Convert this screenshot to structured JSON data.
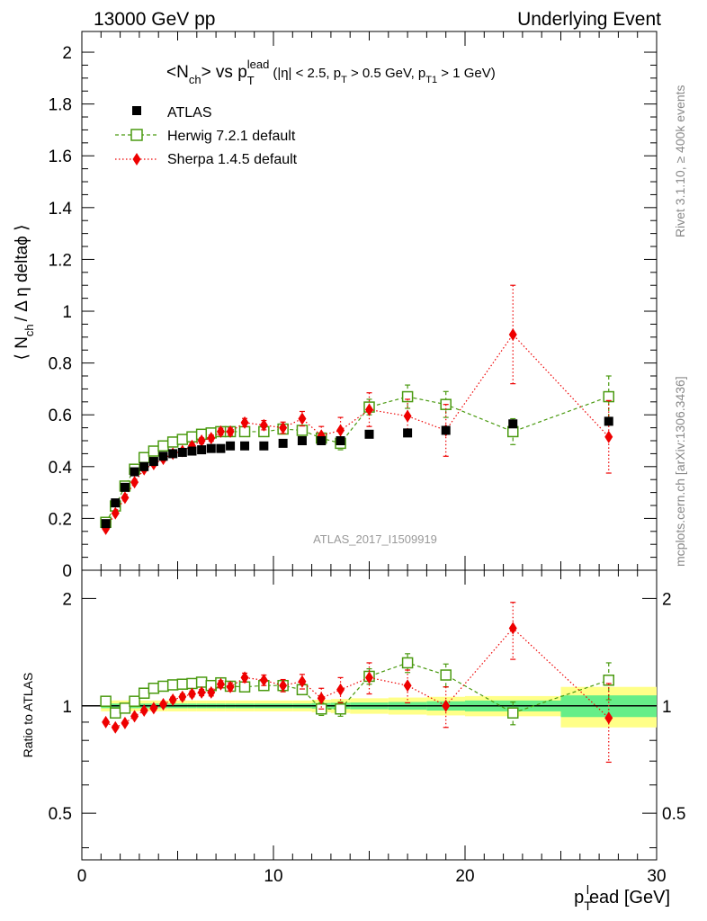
{
  "header": {
    "left": "13000 GeV pp",
    "right": "Underlying Event"
  },
  "side_labels": {
    "rivet": "Rivet 3.1.10, ≥ 400k events",
    "mcplots": "mcplots.cern.ch [arXiv:1306.3436]"
  },
  "chart_data": [
    {
      "type": "scatter",
      "panel": "main",
      "title_parts": {
        "main": "<N",
        "main_sub": "ch",
        "main_tail": "> vs p",
        "p_sub": "T",
        "p_sup": "lead",
        "cuts_1": "(|η| < 2.5, p",
        "cuts_sub1": "T",
        "cuts_2": " > 0.5 GeV, p",
        "cuts_sub2": "T1",
        "cuts_3": " > 1 GeV)"
      },
      "ylabel_parts": {
        "a": "⟨ N",
        "a_sub": "ch",
        "b": "/ Δ η deltaϕ ⟩"
      },
      "watermark": "ATLAS_2017_I1509919",
      "xlim": [
        0,
        30
      ],
      "ylim": [
        0,
        2.08
      ],
      "yticks": [
        0,
        0.2,
        0.4,
        0.6,
        0.8,
        1,
        1.2,
        1.4,
        1.6,
        1.8,
        2
      ],
      "ytick_labels": [
        "0",
        "0.2",
        "0.4",
        "0.6",
        "0.8",
        "1",
        "1.2",
        "1.4",
        "1.6",
        "1.8",
        "2"
      ],
      "legend_position": "top-left",
      "series": [
        {
          "name": "ATLAS",
          "color": "#000000",
          "marker": "filled-square",
          "x": [
            1.25,
            1.75,
            2.25,
            2.75,
            3.25,
            3.75,
            4.25,
            4.75,
            5.25,
            5.75,
            6.25,
            6.75,
            7.25,
            7.75,
            8.5,
            9.5,
            10.5,
            11.5,
            12.5,
            13.5,
            15,
            17,
            19,
            22.5,
            27.5
          ],
          "y": [
            0.18,
            0.26,
            0.32,
            0.38,
            0.4,
            0.42,
            0.44,
            0.45,
            0.455,
            0.46,
            0.465,
            0.47,
            0.47,
            0.48,
            0.48,
            0.48,
            0.49,
            0.5,
            0.5,
            0.5,
            0.525,
            0.53,
            0.54,
            0.565,
            0.575
          ]
        },
        {
          "name": "Herwig 7.2.1 default",
          "color": "#4a9a10",
          "marker": "open-square",
          "line": "dashed",
          "x": [
            1.25,
            1.75,
            2.25,
            2.75,
            3.25,
            3.75,
            4.25,
            4.75,
            5.25,
            5.75,
            6.25,
            6.75,
            7.25,
            7.75,
            8.5,
            9.5,
            10.5,
            11.5,
            12.5,
            13.5,
            15,
            17,
            19,
            22.5,
            27.5
          ],
          "y": [
            0.185,
            0.248,
            0.325,
            0.39,
            0.435,
            0.46,
            0.48,
            0.495,
            0.505,
            0.515,
            0.525,
            0.53,
            0.535,
            0.535,
            0.535,
            0.535,
            0.545,
            0.54,
            0.51,
            0.49,
            0.63,
            0.67,
            0.64,
            0.535,
            0.67
          ],
          "yerr": [
            0.008,
            0.008,
            0.008,
            0.008,
            0.008,
            0.008,
            0.008,
            0.008,
            0.008,
            0.008,
            0.008,
            0.008,
            0.008,
            0.008,
            0.01,
            0.012,
            0.015,
            0.018,
            0.02,
            0.025,
            0.03,
            0.045,
            0.05,
            0.05,
            0.08
          ]
        },
        {
          "name": "Sherpa 1.4.5 default",
          "color": "#ee0000",
          "marker": "filled-diamond",
          "line": "dotted",
          "x": [
            1.25,
            1.75,
            2.25,
            2.75,
            3.25,
            3.75,
            4.25,
            4.75,
            5.25,
            5.75,
            6.25,
            6.75,
            7.25,
            7.75,
            8.5,
            9.5,
            10.5,
            11.5,
            12.5,
            13.5,
            15,
            17,
            19,
            22.5,
            27.5
          ],
          "y": [
            0.16,
            0.22,
            0.28,
            0.34,
            0.39,
            0.41,
            0.43,
            0.45,
            0.46,
            0.48,
            0.5,
            0.51,
            0.535,
            0.535,
            0.57,
            0.56,
            0.55,
            0.585,
            0.52,
            0.54,
            0.62,
            0.595,
            0.54,
            0.91,
            0.515
          ],
          "yerr": [
            0.005,
            0.005,
            0.006,
            0.006,
            0.007,
            0.007,
            0.008,
            0.009,
            0.01,
            0.01,
            0.011,
            0.012,
            0.013,
            0.014,
            0.016,
            0.018,
            0.022,
            0.028,
            0.035,
            0.05,
            0.065,
            0.065,
            0.1,
            0.19,
            0.14
          ]
        }
      ]
    },
    {
      "type": "scatter",
      "panel": "ratio",
      "ylabel": "Ratio to ATLAS",
      "xlabel_parts": {
        "p": "p",
        "p_sub": "T",
        "p_sup": "l",
        "tail": "ead [GeV]"
      },
      "xlim": [
        0,
        30
      ],
      "ylim": [
        0.37,
        2.4
      ],
      "log_y": true,
      "xticks": [
        0,
        10,
        20,
        30
      ],
      "xtick_labels": [
        "0",
        "10",
        "20",
        "30"
      ],
      "yticks": [
        0.5,
        1,
        2
      ],
      "ytick_labels": [
        "0.5",
        "1",
        "2"
      ],
      "band_edges": [
        1,
        1.5,
        2,
        2.5,
        3,
        3.5,
        4,
        4.5,
        5,
        5.5,
        6,
        6.5,
        7,
        7.5,
        8,
        9,
        10,
        11,
        12,
        13,
        14,
        16,
        18,
        20,
        25,
        30
      ],
      "band_inner": [
        0.015,
        0.015,
        0.015,
        0.015,
        0.015,
        0.015,
        0.015,
        0.015,
        0.015,
        0.015,
        0.015,
        0.015,
        0.015,
        0.015,
        0.015,
        0.015,
        0.015,
        0.015,
        0.018,
        0.02,
        0.022,
        0.025,
        0.03,
        0.035,
        0.07
      ],
      "band_outer": [
        0.035,
        0.035,
        0.035,
        0.035,
        0.035,
        0.035,
        0.035,
        0.035,
        0.035,
        0.035,
        0.035,
        0.035,
        0.035,
        0.035,
        0.035,
        0.035,
        0.035,
        0.035,
        0.04,
        0.045,
        0.05,
        0.055,
        0.06,
        0.065,
        0.13
      ],
      "band_colors": {
        "inner": "#66ee88",
        "outer": "#ffff88"
      },
      "series": [
        {
          "name": "Herwig 7.2.1 default",
          "color": "#4a9a10",
          "marker": "open-square",
          "line": "dashed",
          "x": [
            1.25,
            1.75,
            2.25,
            2.75,
            3.25,
            3.75,
            4.25,
            4.75,
            5.25,
            5.75,
            6.25,
            6.75,
            7.25,
            7.75,
            8.5,
            9.5,
            10.5,
            11.5,
            12.5,
            13.5,
            15,
            17,
            19,
            22.5,
            27.5
          ],
          "y": [
            1.03,
            0.955,
            0.985,
            1.03,
            1.085,
            1.12,
            1.135,
            1.145,
            1.15,
            1.155,
            1.165,
            1.14,
            1.16,
            1.135,
            1.13,
            1.14,
            1.14,
            1.11,
            0.98,
            0.98,
            1.21,
            1.32,
            1.22,
            0.955,
            1.18
          ],
          "yerr": [
            0.01,
            0.01,
            0.01,
            0.01,
            0.01,
            0.01,
            0.01,
            0.01,
            0.01,
            0.01,
            0.01,
            0.01,
            0.01,
            0.01,
            0.02,
            0.025,
            0.03,
            0.035,
            0.04,
            0.045,
            0.06,
            0.08,
            0.09,
            0.07,
            0.14
          ]
        },
        {
          "name": "Sherpa 1.4.5 default",
          "color": "#ee0000",
          "marker": "filled-diamond",
          "line": "dotted",
          "x": [
            1.25,
            1.75,
            2.25,
            2.75,
            3.25,
            3.75,
            4.25,
            4.75,
            5.25,
            5.75,
            6.25,
            6.75,
            7.25,
            7.75,
            8.5,
            9.5,
            10.5,
            11.5,
            12.5,
            13.5,
            15,
            17,
            19,
            22.5,
            27.5
          ],
          "y": [
            0.9,
            0.87,
            0.895,
            0.935,
            0.97,
            0.985,
            1.01,
            1.04,
            1.06,
            1.08,
            1.09,
            1.09,
            1.15,
            1.13,
            1.2,
            1.18,
            1.14,
            1.17,
            1.05,
            1.11,
            1.2,
            1.14,
            1.0,
            1.65,
            0.925
          ],
          "yerr": [
            0.01,
            0.01,
            0.01,
            0.012,
            0.014,
            0.014,
            0.016,
            0.018,
            0.02,
            0.02,
            0.022,
            0.024,
            0.026,
            0.03,
            0.035,
            0.04,
            0.045,
            0.055,
            0.07,
            0.09,
            0.12,
            0.12,
            0.13,
            0.3,
            0.23
          ]
        }
      ]
    }
  ]
}
